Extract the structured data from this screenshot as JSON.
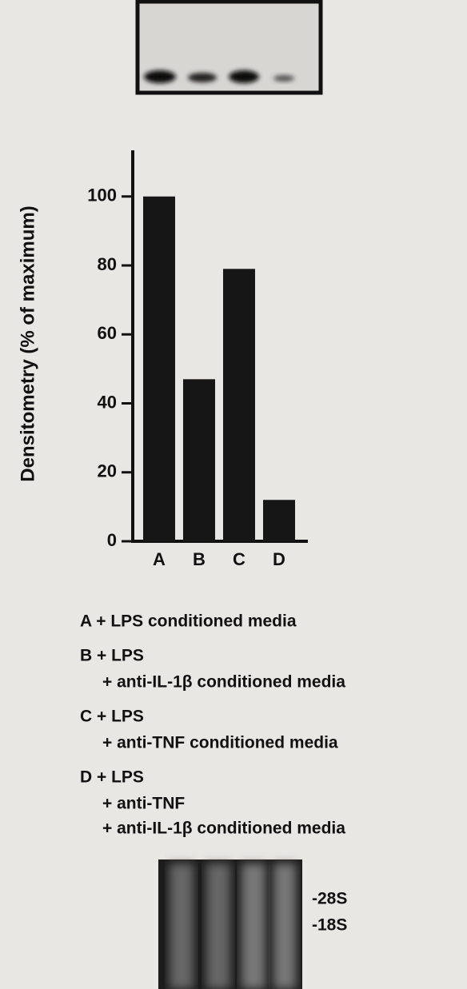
{
  "chart_data": {
    "type": "bar",
    "y_label": "Densitometry (% of maximum)",
    "categories": [
      "A",
      "B",
      "C",
      "D"
    ],
    "values": [
      100,
      47,
      79,
      12
    ],
    "color": "#161616",
    "ylim": [
      0,
      112
    ],
    "yticks": [
      0,
      20,
      40,
      60,
      80,
      100
    ],
    "key": [
      [
        "A + LPS conditioned media"
      ],
      [
        "B + LPS",
        "+ anti-IL-1β conditioned media"
      ],
      [
        "C + LPS",
        "+ anti-TNF conditioned media"
      ],
      [
        "D + LPS",
        "+ anti-TNF",
        "+ anti-IL-1β conditioned media"
      ]
    ],
    "gel_labels": [
      "-28S",
      "-18S"
    ]
  }
}
